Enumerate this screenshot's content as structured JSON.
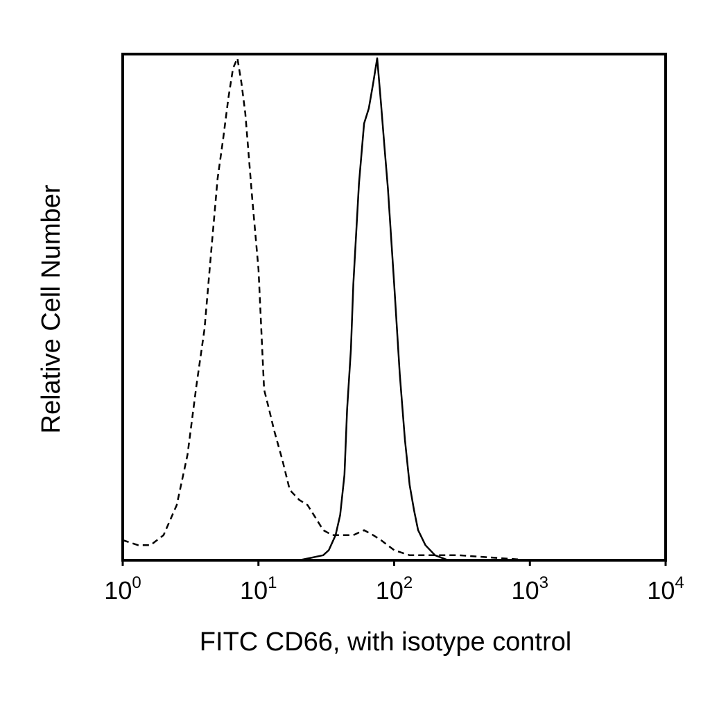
{
  "chart_data": {
    "type": "line",
    "title": "",
    "xlabel": "FITC CD66, with isotype control",
    "ylabel": "Relative Cell Number",
    "x_scale": "log",
    "xlim": [
      1,
      10000
    ],
    "ylim": [
      0,
      100
    ],
    "x_ticks": [
      {
        "base": "10",
        "exp": "0"
      },
      {
        "base": "10",
        "exp": "1"
      },
      {
        "base": "10",
        "exp": "2"
      },
      {
        "base": "10",
        "exp": "3"
      },
      {
        "base": "10",
        "exp": "4"
      }
    ],
    "grid": false,
    "legend": "none",
    "series": [
      {
        "line_style": "dashed",
        "color": "#000000",
        "x": [
          1.0,
          1.3,
          1.6,
          2.0,
          2.5,
          3.0,
          3.5,
          4.0,
          4.5,
          5.0,
          5.5,
          6.0,
          6.5,
          7.0,
          7.5,
          8.0,
          9.0,
          10.0,
          11.0,
          12.0,
          13.0,
          15.0,
          17.0,
          20.0,
          23.0,
          27.0,
          30.0,
          35.0,
          40.0,
          50.0,
          60.0,
          70.0,
          80.0,
          100.0,
          130.0,
          200.0,
          300.0,
          1000.0,
          10000.0
        ],
        "y": [
          4,
          3,
          3,
          5,
          11,
          21,
          35,
          46,
          62,
          76,
          84,
          92,
          98,
          100,
          95,
          89,
          72,
          58,
          34,
          30,
          26,
          20,
          14,
          12,
          11,
          8,
          6,
          5,
          5,
          5,
          6,
          5,
          4,
          2,
          1,
          1,
          1,
          0,
          0
        ]
      },
      {
        "line_style": "solid",
        "color": "#000000",
        "x": [
          1.0,
          10.0,
          20.0,
          30.0,
          33.0,
          37.0,
          40.0,
          43.0,
          45.0,
          48.0,
          50.0,
          55.0,
          60.0,
          65.0,
          70.0,
          75.0,
          80.0,
          85.0,
          90.0,
          100.0,
          110.0,
          120.0,
          130.0,
          140.0,
          150.0,
          170.0,
          200.0,
          250.0,
          300.0,
          1000.0,
          10000.0
        ],
        "y": [
          0,
          0,
          0,
          1,
          2,
          5,
          9,
          17,
          30,
          42,
          55,
          75,
          87,
          90,
          95,
          100,
          91,
          82,
          74,
          55,
          37,
          24,
          15,
          10,
          6,
          3,
          1,
          0,
          0,
          0,
          0
        ]
      }
    ]
  }
}
